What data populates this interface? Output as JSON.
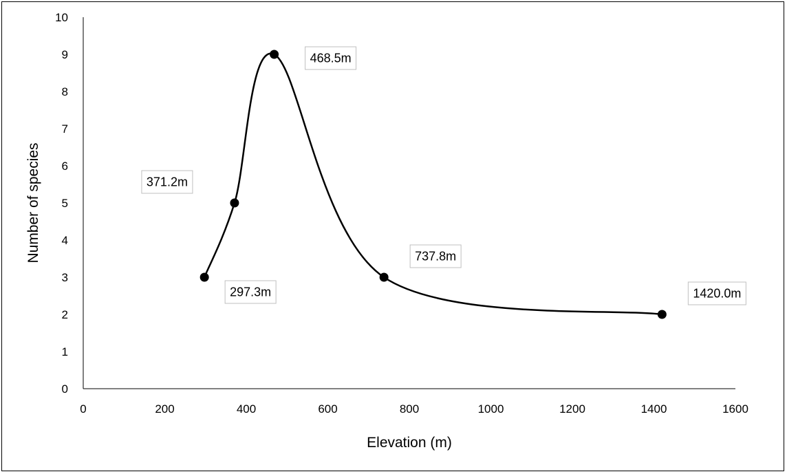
{
  "chart_data": {
    "type": "line",
    "smooth": true,
    "title": "",
    "xlabel": "Elevation (m)",
    "ylabel": "Number of species",
    "xlim": [
      0,
      1600
    ],
    "ylim": [
      0,
      10
    ],
    "xticks": [
      "0",
      "200",
      "400",
      "600",
      "800",
      "1000",
      "1200",
      "1400",
      "1600"
    ],
    "yticks": [
      "0",
      "1",
      "2",
      "3",
      "4",
      "5",
      "6",
      "7",
      "8",
      "9",
      "10"
    ],
    "grid": false,
    "legend": "none",
    "series": [
      {
        "x": [
          297.3,
          371.2,
          468.5,
          737.8,
          1420.0
        ],
        "y": [
          3,
          5,
          9,
          3,
          2
        ],
        "labels": [
          "297.3m",
          "371.2m",
          "468.5m",
          "737.8m",
          "1420.0m"
        ],
        "label_positions": [
          "below-right",
          "above-left",
          "right",
          "above-right",
          "above-right"
        ]
      }
    ],
    "line_color": "#000000",
    "marker_color": "#000000"
  }
}
